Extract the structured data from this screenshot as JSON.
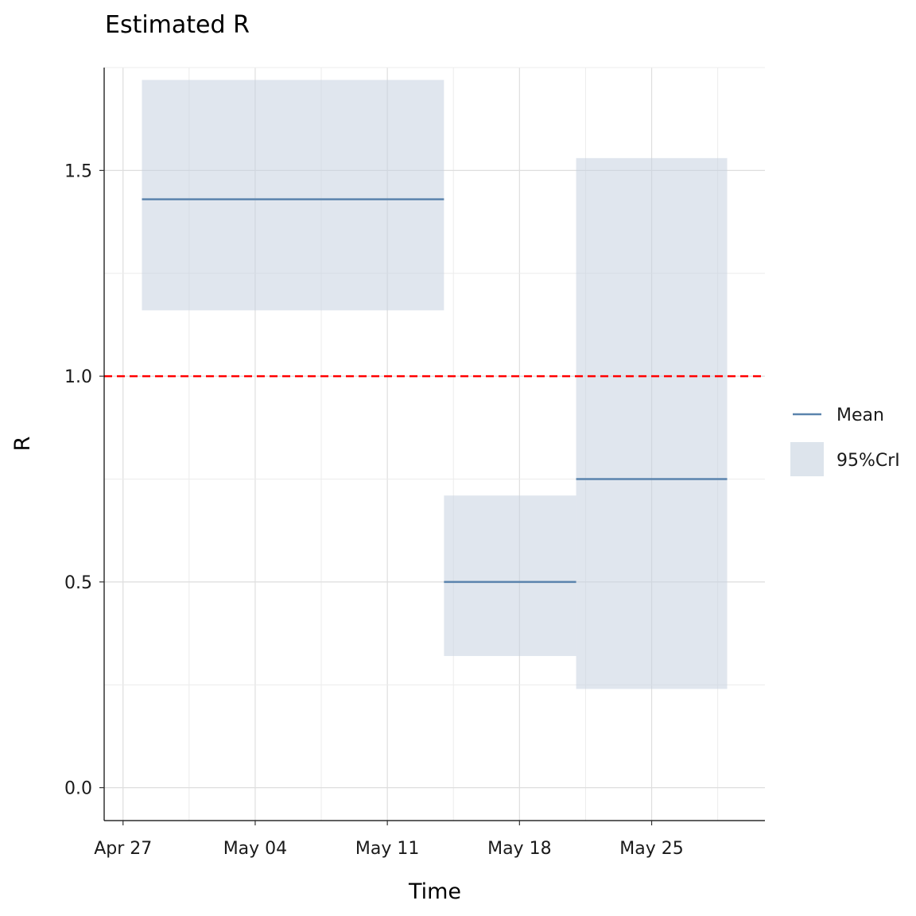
{
  "chart_data": {
    "type": "line",
    "title": "Estimated R",
    "xlabel": "Time",
    "ylabel": "R",
    "x_axis": {
      "type": "date",
      "ticks": [
        "Apr 27",
        "May 04",
        "May 11",
        "May 18",
        "May 25"
      ],
      "range": [
        "2020-04-26",
        "2020-05-31"
      ]
    },
    "ylim": [
      -0.08,
      1.75
    ],
    "y_ticks": [
      "0.0",
      "0.5",
      "1.0",
      "1.5"
    ],
    "grid": true,
    "legend_position": "right",
    "reference_line": {
      "y": 1.0,
      "style": "dashed",
      "color": "#ff0000"
    },
    "segments": [
      {
        "x_start": "2020-04-28",
        "x_end": "2020-05-14",
        "mean": 1.43,
        "lower": 1.16,
        "upper": 1.72
      },
      {
        "x_start": "2020-05-14",
        "x_end": "2020-05-21",
        "mean": 0.5,
        "lower": 0.32,
        "upper": 0.71
      },
      {
        "x_start": "2020-05-21",
        "x_end": "2020-05-29",
        "mean": 0.75,
        "lower": 0.24,
        "upper": 1.53
      }
    ],
    "series": [
      {
        "name": "Mean",
        "kind": "line",
        "color": "#5b84ad"
      },
      {
        "name": "95%CrI",
        "kind": "ribbon",
        "color": "#dde4ec"
      }
    ]
  }
}
